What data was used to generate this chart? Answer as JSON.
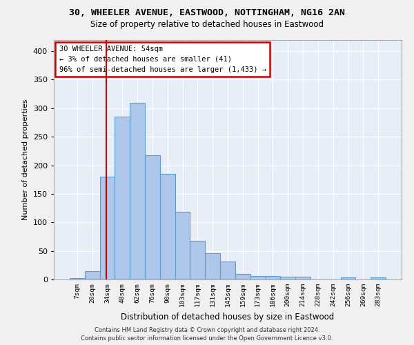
{
  "title_line1": "30, WHEELER AVENUE, EASTWOOD, NOTTINGHAM, NG16 2AN",
  "title_line2": "Size of property relative to detached houses in Eastwood",
  "xlabel": "Distribution of detached houses by size in Eastwood",
  "ylabel": "Number of detached properties",
  "bin_labels": [
    "7sqm",
    "20sqm",
    "34sqm",
    "48sqm",
    "62sqm",
    "76sqm",
    "90sqm",
    "103sqm",
    "117sqm",
    "131sqm",
    "145sqm",
    "159sqm",
    "173sqm",
    "186sqm",
    "200sqm",
    "214sqm",
    "228sqm",
    "242sqm",
    "256sqm",
    "269sqm",
    "283sqm"
  ],
  "bar_values": [
    3,
    15,
    180,
    285,
    310,
    218,
    185,
    118,
    68,
    46,
    31,
    10,
    6,
    6,
    5,
    5,
    0,
    0,
    4,
    0,
    4
  ],
  "bar_color": "#aec6e8",
  "bar_edge_color": "#5a9fd4",
  "ylim": [
    0,
    420
  ],
  "yticks": [
    0,
    50,
    100,
    150,
    200,
    250,
    300,
    350,
    400
  ],
  "property_line_x": 1.95,
  "annotation_text": "30 WHEELER AVENUE: 54sqm\n← 3% of detached houses are smaller (41)\n96% of semi-detached houses are larger (1,433) →",
  "annotation_box_color": "#ffffff",
  "annotation_box_edge_color": "#cc0000",
  "annotation_line_color": "#cc0000",
  "background_color": "#e8eef8",
  "grid_color": "#ffffff",
  "footer_line1": "Contains HM Land Registry data © Crown copyright and database right 2024.",
  "footer_line2": "Contains public sector information licensed under the Open Government Licence v3.0.",
  "fig_bg_color": "#f0f0f0"
}
